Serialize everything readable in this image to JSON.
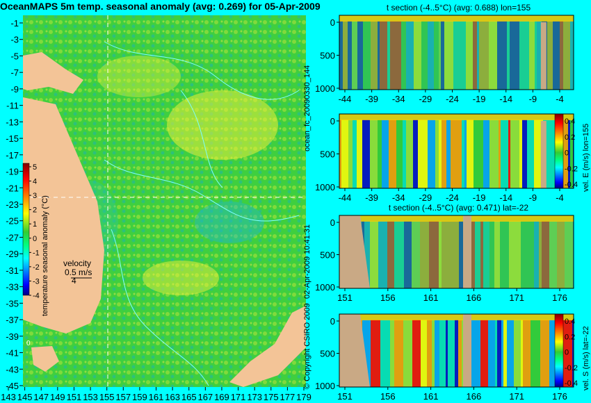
{
  "colors": {
    "background": "#00ffff",
    "land": "#f3c497",
    "contour": "#7fffff",
    "mask": "#c9a985",
    "scale": [
      "#000080",
      "#0000ff",
      "#007fff",
      "#00ffff",
      "#00ff7f",
      "#66dd22",
      "#ffff00",
      "#ff7f00",
      "#ff0000",
      "#800000"
    ]
  },
  "main": {
    "title": "OceanMAPS 5m temp. seasonal anomaly (avg: 0.269) for 05-Apr-2009",
    "lat_ticks": [
      "-1",
      "-3",
      "-5",
      "-7",
      "-9",
      "-11",
      "-13",
      "-15",
      "-17",
      "-19",
      "-21",
      "-23",
      "-25",
      "-27",
      "-29",
      "-31",
      "-33",
      "-35",
      "-37",
      "-39",
      "-41",
      "-43",
      "-45"
    ],
    "lon_ticks": [
      "143",
      "145",
      "147",
      "149",
      "151",
      "153",
      "155",
      "157",
      "159",
      "161",
      "163",
      "165",
      "167",
      "169",
      "171",
      "173",
      "175",
      "177",
      "179"
    ],
    "colorbar_ticks": [
      "5",
      "4",
      "3",
      "2",
      "1",
      "0",
      "-1",
      "-2",
      "-3",
      "-4"
    ],
    "colorbar_label": "temperature seasonal anomaly (°C)",
    "velocity_label": "velocity",
    "velocity_scale": "0.5 m/s",
    "velocity_count": "4",
    "island_label": "0"
  },
  "side_labels": {
    "run_label": "ocean_fc_20090330_144",
    "date_label": "02-Apr-2009 10:41:31",
    "copyright": "© Copyright CSIRO 2009"
  },
  "chart_data": [
    {
      "type": "heatmap",
      "title": "t section (-4..5°C) (avg: 0.688) lon=155",
      "x_ticks": [
        "-44",
        "-39",
        "-34",
        "-29",
        "-24",
        "-19",
        "-14",
        "-9",
        "-4"
      ],
      "y_ticks": [
        "0",
        "500",
        "1000"
      ],
      "colorbar_label": "",
      "colorbar_ticks": []
    },
    {
      "type": "heatmap",
      "title": "",
      "x_ticks": [
        "-44",
        "-39",
        "-34",
        "-29",
        "-24",
        "-19",
        "-14",
        "-9",
        "-4"
      ],
      "y_ticks": [
        "0",
        "500",
        "1000"
      ],
      "colorbar_label": "vel. E (m/s) lon=155",
      "colorbar_ticks": [
        "0.4",
        "0.2",
        "0",
        "-0.2",
        "-0.4"
      ]
    },
    {
      "type": "heatmap",
      "title": "t section (-4..5°C) (avg: 0.471) lat=-22",
      "x_ticks": [
        "151",
        "156",
        "161",
        "166",
        "171",
        "176"
      ],
      "y_ticks": [
        "0",
        "500",
        "1000"
      ],
      "colorbar_label": "",
      "colorbar_ticks": []
    },
    {
      "type": "heatmap",
      "title": "",
      "x_ticks": [
        "151",
        "156",
        "161",
        "166",
        "171",
        "176"
      ],
      "y_ticks": [
        "0",
        "500",
        "1000"
      ],
      "colorbar_label": "vel. S (m/s) lat=-22",
      "colorbar_ticks": [
        "0.4",
        "0.2",
        "0",
        "-0.2",
        "-0.4"
      ]
    }
  ]
}
